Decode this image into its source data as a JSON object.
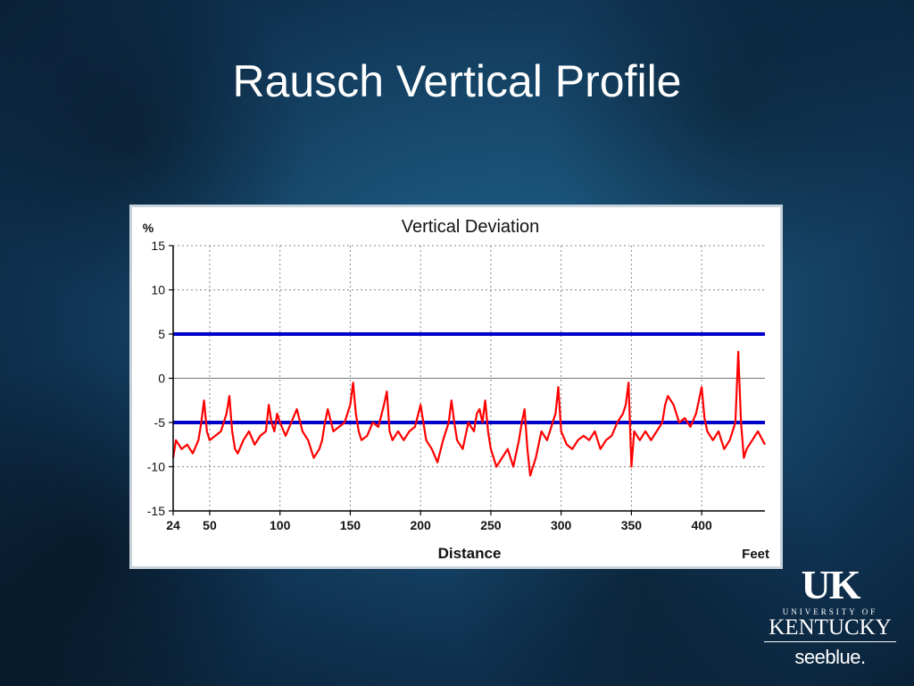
{
  "slide": {
    "title": "Rausch Vertical Profile"
  },
  "logo": {
    "uk": "UK",
    "university_of": "UNIVERSITY OF",
    "kentucky": "KENTUCKY",
    "tagline": "seeblue."
  },
  "chart_data": {
    "type": "line",
    "title": "Vertical Deviation",
    "xlabel": "Distance",
    "x_unit_label": "Feet",
    "ylabel": "%",
    "xlim": [
      24,
      445
    ],
    "ylim": [
      -15,
      15
    ],
    "x_ticks": [
      24,
      50,
      100,
      150,
      200,
      250,
      300,
      350,
      400
    ],
    "x_grid": [
      50,
      100,
      150,
      200,
      250,
      300,
      350,
      400
    ],
    "y_ticks": [
      15,
      10,
      5,
      0,
      -5,
      -10,
      -15
    ],
    "grid": true,
    "colors": {
      "profile": "#ff0000",
      "limits": "#0000cc",
      "grid": "#888888"
    },
    "reference_lines": [
      {
        "y": 5
      },
      {
        "y": -5
      }
    ],
    "series": [
      {
        "x": [
          24,
          26,
          30,
          34,
          38,
          42,
          44,
          46,
          48,
          50,
          54,
          58,
          62,
          64,
          66,
          68,
          70,
          74,
          78,
          82,
          86,
          90,
          92,
          94,
          96,
          98,
          100,
          104,
          108,
          112,
          116,
          120,
          124,
          128,
          130,
          132,
          134,
          138,
          142,
          146,
          150,
          152,
          154,
          156,
          158,
          162,
          166,
          170,
          174,
          176,
          178,
          180,
          184,
          188,
          192,
          196,
          200,
          204,
          208,
          212,
          216,
          220,
          222,
          224,
          226,
          230,
          234,
          238,
          240,
          242,
          244,
          246,
          248,
          250,
          254,
          258,
          262,
          266,
          270,
          272,
          274,
          276,
          278,
          282,
          286,
          290,
          294,
          296,
          298,
          300,
          304,
          308,
          312,
          316,
          320,
          324,
          328,
          332,
          336,
          340,
          344,
          346,
          348,
          350,
          352,
          356,
          360,
          364,
          368,
          372,
          374,
          376,
          380,
          384,
          388,
          392,
          396,
          398,
          400,
          402,
          404,
          408,
          412,
          416,
          420,
          424,
          426,
          428,
          430,
          432,
          436,
          440,
          445
        ],
        "y": [
          -9,
          -7,
          -8,
          -7.5,
          -8.5,
          -7,
          -5,
          -2.5,
          -6,
          -7,
          -6.5,
          -6,
          -4,
          -2,
          -6,
          -8,
          -8.5,
          -7,
          -6,
          -7.5,
          -6.5,
          -6,
          -3,
          -5,
          -6,
          -4,
          -5,
          -6.5,
          -5,
          -3.5,
          -6,
          -7,
          -9,
          -8,
          -7,
          -5,
          -3.5,
          -6,
          -5.5,
          -5,
          -3,
          -0.5,
          -4,
          -6,
          -7,
          -6.5,
          -5,
          -5.5,
          -3,
          -1.5,
          -6,
          -7,
          -6,
          -7,
          -6,
          -5.5,
          -3,
          -7,
          -8,
          -9.5,
          -7,
          -5,
          -2.5,
          -5,
          -7,
          -8,
          -5,
          -6,
          -4,
          -3.5,
          -5,
          -2.5,
          -6,
          -8,
          -10,
          -9,
          -8,
          -10,
          -7,
          -5,
          -3.5,
          -8,
          -11,
          -9,
          -6,
          -7,
          -5,
          -4,
          -1,
          -6,
          -7.5,
          -8,
          -7,
          -6.5,
          -7,
          -6,
          -8,
          -7,
          -6.5,
          -5,
          -4,
          -3,
          -0.5,
          -10,
          -6,
          -7,
          -6,
          -7,
          -6,
          -5,
          -3,
          -2,
          -3,
          -5,
          -4.5,
          -5.5,
          -4,
          -2.5,
          -1,
          -4.5,
          -6,
          -7,
          -6,
          -8,
          -7,
          -5,
          3,
          -5,
          -9,
          -8,
          -7,
          -6,
          -7.5
        ]
      }
    ]
  }
}
